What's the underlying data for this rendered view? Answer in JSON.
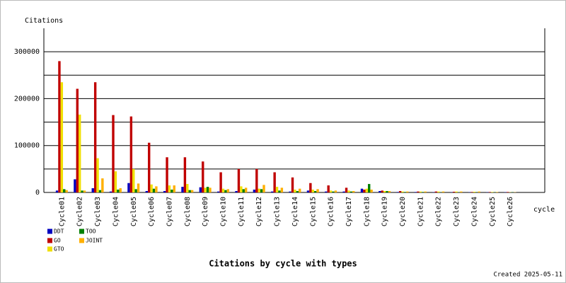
{
  "chart_data": {
    "type": "bar",
    "title": "Citations by cycle with types",
    "ylabel": "Citations",
    "xlabel": "cycle",
    "footnote": "Created 2025-05-11",
    "categories": [
      "Cycle01",
      "Cycle02",
      "Cycle03",
      "Cycle04",
      "Cycle05",
      "Cycle06",
      "Cycle07",
      "Cycle08",
      "Cycle09",
      "Cycle10",
      "Cycle11",
      "Cycle12",
      "Cycle13",
      "Cycle14",
      "Cycle15",
      "Cycle16",
      "Cycle17",
      "Cycle18",
      "Cycle19",
      "Cycle20",
      "Cycle21",
      "Cycle22",
      "Cycle23",
      "Cycle24",
      "Cycle25",
      "Cycle26"
    ],
    "series": [
      {
        "name": "DDT",
        "color": "#0000c0",
        "values": [
          4000,
          28000,
          9000,
          2000,
          20000,
          3000,
          3000,
          12000,
          11000,
          2000,
          3000,
          6000,
          2000,
          2000,
          4000,
          2000,
          2000,
          8000,
          3000,
          1000,
          1000,
          500,
          500,
          500,
          500,
          500
        ]
      },
      {
        "name": "GO",
        "color": "#c00000",
        "values": [
          280000,
          221000,
          235000,
          165000,
          162000,
          106000,
          75000,
          75000,
          66000,
          43000,
          50000,
          50000,
          43000,
          32000,
          20000,
          15000,
          10000,
          6000,
          4000,
          3000,
          2000,
          2000,
          1500,
          1000,
          1000,
          1000
        ]
      },
      {
        "name": "GTO",
        "color": "#f0e000",
        "values": [
          235000,
          166000,
          73000,
          45000,
          50000,
          17000,
          15000,
          18000,
          10000,
          8000,
          13000,
          8000,
          12000,
          6000,
          6000,
          4000,
          4000,
          8000,
          3000,
          2000,
          2000,
          2000,
          2000,
          1500,
          1000,
          500
        ]
      },
      {
        "name": "TOO",
        "color": "#008000",
        "values": [
          7000,
          4000,
          5000,
          6000,
          7000,
          8000,
          6000,
          5000,
          12000,
          5000,
          7000,
          7000,
          4000,
          3000,
          3000,
          2000,
          2000,
          18000,
          3000,
          1000,
          1000,
          500,
          500,
          500,
          500,
          500
        ]
      },
      {
        "name": "JOINT",
        "color": "#ffb000",
        "values": [
          5000,
          4000,
          30000,
          9000,
          19000,
          13000,
          15000,
          5000,
          10000,
          7000,
          10000,
          16000,
          10000,
          8000,
          7000,
          4000,
          3000,
          6000,
          3000,
          2000,
          2000,
          2000,
          2000,
          2000,
          1000,
          500
        ]
      }
    ],
    "ylim": [
      0,
      350000
    ],
    "yticks": [
      0,
      100000,
      200000,
      300000
    ],
    "yminor": [
      50000,
      150000,
      250000
    ],
    "grid": true
  }
}
